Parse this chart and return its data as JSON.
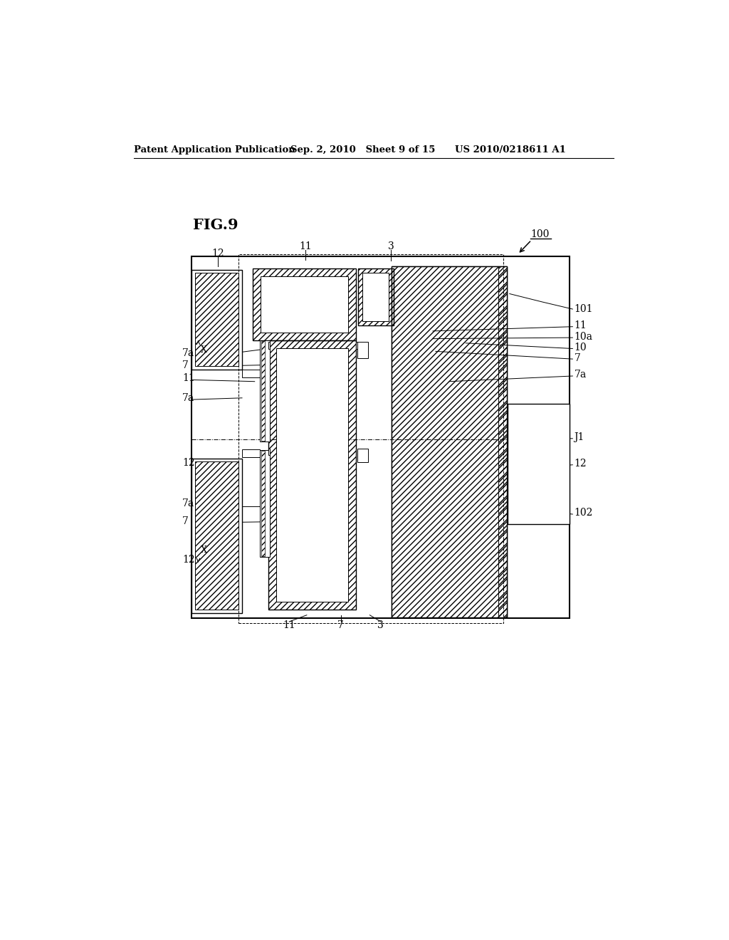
{
  "bg_color": "#ffffff",
  "line_color": "#000000",
  "fig_label": "FIG.9",
  "header_left": "Patent Application Publication",
  "header_mid": "Sep. 2, 2010   Sheet 9 of 15",
  "header_right": "US 2010/0218611 A1",
  "ref_100": "100",
  "ref_101": "101",
  "ref_102": "102",
  "ref_J1": "J1",
  "ref_3": "3",
  "ref_7": "7",
  "ref_7a": "7a",
  "ref_10": "10",
  "ref_10a": "10a",
  "ref_11": "11",
  "ref_12": "12",
  "ref_X": "X"
}
